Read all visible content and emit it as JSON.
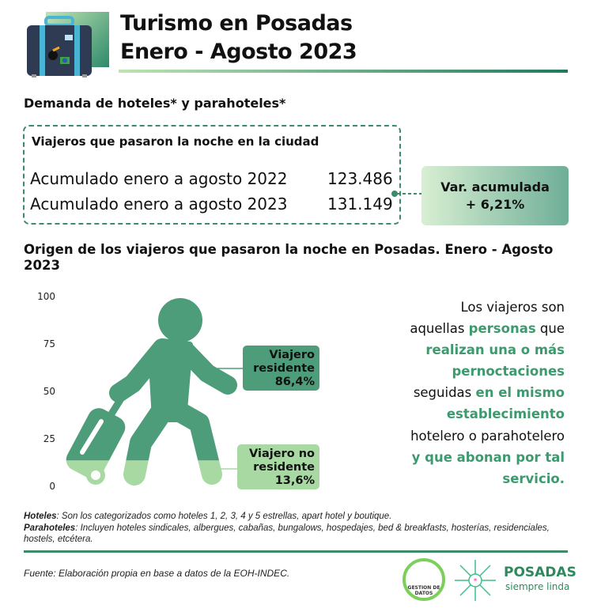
{
  "header": {
    "title_line1": "Turismo en Posadas",
    "title_line2": "Enero - Agosto 2023"
  },
  "demand": {
    "heading": "Demanda de hoteles* y parahoteles*",
    "box_title": "Viajeros que pasaron la noche en la ciudad",
    "rows": [
      {
        "label": "Acumulado enero a agosto 2022",
        "value": "123.486"
      },
      {
        "label": "Acumulado enero a agosto 2023",
        "value": "131.149"
      }
    ],
    "variation_label": "Var. acumulada",
    "variation_value": "+ 6,21%"
  },
  "origin_heading": "Origen de los viajeros que pasaron la noche en Posadas. Enero - Agosto 2023",
  "chart_data": {
    "type": "bar",
    "title": "Origen de los viajeros que pasaron la noche en Posadas. Enero - Agosto 2023",
    "ylim": [
      0,
      100
    ],
    "yticks": [
      "100",
      "75",
      "50",
      "25",
      "0"
    ],
    "series": [
      {
        "name": "Viajero residente",
        "value": 86.4,
        "label_line1": "Viajero",
        "label_line2": "residente",
        "value_label": "86,4%",
        "color": "#4e9d7a"
      },
      {
        "name": "Viajero no residente",
        "value": 13.6,
        "label_line1": "Viajero no",
        "label_line2": "residente",
        "value_label": "13,6%",
        "color": "#a8d9a2"
      }
    ]
  },
  "definition": {
    "l1": "Los viajeros son",
    "l2a": "aquellas ",
    "l2b": "personas",
    "l2c": " que",
    "l3": "realizan una o más",
    "l4": "pernoctaciones",
    "l5a": "seguidas ",
    "l5b": "en el mismo",
    "l6": "establecimiento",
    "l7": "hotelero o parahotelero",
    "l8": "y que abonan por tal",
    "l9": "servicio."
  },
  "notes": {
    "hoteles_term": "Hoteles",
    "hoteles_text": ": Son los categorizados como hoteles 1, 2, 3, 4 y 5 estrellas, apart hotel y boutique.",
    "parahoteles_term": "Parahoteles",
    "parahoteles_text": ": Incluyen hoteles sindicales, albergues, cabañas, bungalows, hospedajes, bed & breakfasts, hosterías, residenciales, hostels, etcétera.",
    "source": "Fuente: Elaboración propia en base a datos de la EOH-INDEC."
  },
  "logos": {
    "gestion": "GESTION DE DATOS",
    "posadas": "POSADAS",
    "posadas_sub": "siempre linda"
  }
}
